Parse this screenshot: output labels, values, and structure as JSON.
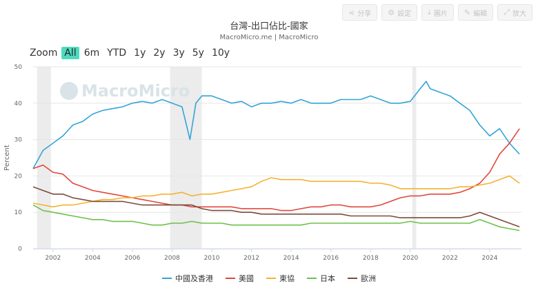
{
  "toolbar": [
    {
      "icon": "share-icon",
      "glyph": "⋖",
      "label": "分享"
    },
    {
      "icon": "gear-icon",
      "glyph": "⚙",
      "label": "設定"
    },
    {
      "icon": "download-icon",
      "glyph": "⤓",
      "label": "圖片"
    },
    {
      "icon": "pencil-icon",
      "glyph": "✎",
      "label": "編輯"
    },
    {
      "icon": "expand-icon",
      "glyph": "⤢",
      "label": "放大"
    }
  ],
  "zoom": {
    "label": "Zoom",
    "options": [
      "All",
      "6m",
      "YTD",
      "1y",
      "2y",
      "3y",
      "5y",
      "10y"
    ],
    "active": "All"
  },
  "watermark": "MacroMicro",
  "chart_data": {
    "type": "line",
    "title": "台灣-出口佔比-國家",
    "subtitle": "MacroMicro.me | MacroMicro",
    "ylabel": "Percent",
    "ylim": [
      0,
      50
    ],
    "yticks": [
      0,
      10,
      20,
      30,
      40,
      50
    ],
    "xlim": [
      2001.0,
      2025.6
    ],
    "xticks": [
      "2002",
      "2004",
      "2006",
      "2008",
      "2010",
      "2012",
      "2014",
      "2016",
      "2018",
      "2020",
      "2022",
      "2024"
    ],
    "grid": true,
    "legend_position": "bottom",
    "recession_bands": [
      [
        2001.2,
        2001.9
      ],
      [
        2007.9,
        2009.5
      ],
      [
        2020.1,
        2020.3
      ]
    ],
    "series": [
      {
        "name": "中國及香港",
        "color": "#31a4d8",
        "x": [
          2001.0,
          2001.5,
          2002.0,
          2002.5,
          2003.0,
          2003.5,
          2004.0,
          2004.5,
          2005.0,
          2005.5,
          2006.0,
          2006.5,
          2007.0,
          2007.5,
          2008.0,
          2008.5,
          2008.9,
          2009.2,
          2009.5,
          2010.0,
          2010.5,
          2011.0,
          2011.5,
          2012.0,
          2012.5,
          2013.0,
          2013.5,
          2014.0,
          2014.5,
          2015.0,
          2015.5,
          2016.0,
          2016.5,
          2017.0,
          2017.5,
          2018.0,
          2018.5,
          2019.0,
          2019.5,
          2020.0,
          2020.5,
          2020.8,
          2021.0,
          2021.5,
          2022.0,
          2022.5,
          2023.0,
          2023.5,
          2024.0,
          2024.5,
          2025.0,
          2025.5
        ],
        "values": [
          22,
          27,
          29,
          31,
          34,
          35,
          37,
          38,
          38.5,
          39,
          40,
          40.5,
          40,
          41,
          40,
          39,
          30,
          40,
          42,
          42,
          41,
          40,
          40.5,
          39,
          40,
          40,
          40.5,
          40,
          41,
          40,
          40,
          40,
          41,
          41,
          41,
          42,
          41,
          40,
          40,
          40.5,
          44,
          46,
          44,
          43,
          42,
          40,
          38,
          34,
          31,
          33,
          29,
          26
        ]
      },
      {
        "name": "美國",
        "color": "#e0473c",
        "x": [
          2001.0,
          2001.5,
          2002.0,
          2002.5,
          2003.0,
          2003.5,
          2004.0,
          2004.5,
          2005.0,
          2005.5,
          2006.0,
          2006.5,
          2007.0,
          2007.5,
          2008.0,
          2008.5,
          2009.0,
          2009.5,
          2010.0,
          2010.5,
          2011.0,
          2011.5,
          2012.0,
          2012.5,
          2013.0,
          2013.5,
          2014.0,
          2014.5,
          2015.0,
          2015.5,
          2016.0,
          2016.5,
          2017.0,
          2017.5,
          2018.0,
          2018.5,
          2019.0,
          2019.5,
          2020.0,
          2020.5,
          2021.0,
          2021.5,
          2022.0,
          2022.5,
          2023.0,
          2023.5,
          2024.0,
          2024.5,
          2025.0,
          2025.5
        ],
        "values": [
          22,
          23,
          21,
          20.5,
          18,
          17,
          16,
          15.5,
          15,
          14.5,
          14,
          13.5,
          13,
          12.5,
          12,
          12,
          11.5,
          11.5,
          11.5,
          11.5,
          11.5,
          11,
          11,
          11,
          11,
          10.5,
          10.5,
          11,
          11.5,
          11.5,
          12,
          12,
          11.5,
          11.5,
          11.5,
          12,
          13,
          14,
          14.5,
          14.5,
          15,
          15,
          15,
          15.5,
          16.5,
          18,
          21,
          26,
          29,
          33
        ]
      },
      {
        "name": "東協",
        "color": "#f5b12f",
        "x": [
          2001.0,
          2001.5,
          2002.0,
          2002.5,
          2003.0,
          2003.5,
          2004.0,
          2004.5,
          2005.0,
          2005.5,
          2006.0,
          2006.5,
          2007.0,
          2007.5,
          2008.0,
          2008.5,
          2009.0,
          2009.5,
          2010.0,
          2010.5,
          2011.0,
          2011.5,
          2012.0,
          2012.5,
          2013.0,
          2013.5,
          2014.0,
          2014.5,
          2015.0,
          2015.5,
          2016.0,
          2016.5,
          2017.0,
          2017.5,
          2018.0,
          2018.5,
          2019.0,
          2019.5,
          2020.0,
          2020.5,
          2021.0,
          2021.5,
          2022.0,
          2022.5,
          2023.0,
          2023.5,
          2024.0,
          2024.5,
          2025.0,
          2025.5
        ],
        "values": [
          12.5,
          12,
          11.5,
          12,
          12,
          12.5,
          13,
          13.5,
          13.5,
          14,
          14,
          14.5,
          14.5,
          15,
          15,
          15.5,
          14.5,
          15,
          15,
          15.5,
          16,
          16.5,
          17,
          18.5,
          19.5,
          19,
          19,
          19,
          18.5,
          18.5,
          18.5,
          18.5,
          18.5,
          18.5,
          18,
          18,
          17.5,
          16.5,
          16.5,
          16.5,
          16.5,
          16.5,
          16.5,
          17,
          17,
          17.5,
          18,
          19,
          20,
          18
        ]
      },
      {
        "name": "日本",
        "color": "#69c14a",
        "x": [
          2001.0,
          2001.5,
          2002.0,
          2002.5,
          2003.0,
          2003.5,
          2004.0,
          2004.5,
          2005.0,
          2005.5,
          2006.0,
          2006.5,
          2007.0,
          2007.5,
          2008.0,
          2008.5,
          2009.0,
          2009.5,
          2010.0,
          2010.5,
          2011.0,
          2011.5,
          2012.0,
          2012.5,
          2013.0,
          2013.5,
          2014.0,
          2014.5,
          2015.0,
          2015.5,
          2016.0,
          2016.5,
          2017.0,
          2017.5,
          2018.0,
          2018.5,
          2019.0,
          2019.5,
          2020.0,
          2020.5,
          2021.0,
          2021.5,
          2022.0,
          2022.5,
          2023.0,
          2023.5,
          2024.0,
          2024.5,
          2025.0,
          2025.5
        ],
        "values": [
          12,
          10.5,
          10,
          9.5,
          9,
          8.5,
          8,
          8,
          7.5,
          7.5,
          7.5,
          7,
          6.5,
          6.5,
          7,
          7,
          7.5,
          7,
          7,
          7,
          6.5,
          6.5,
          6.5,
          6.5,
          6.5,
          6.5,
          6.5,
          6.5,
          7,
          7,
          7,
          7,
          7,
          7,
          7,
          7,
          7,
          7,
          7.5,
          7,
          7,
          7,
          7,
          7,
          7,
          8,
          7,
          6,
          5.5,
          5
        ]
      },
      {
        "name": "歐洲",
        "color": "#7b4a3a",
        "x": [
          2001.0,
          2001.5,
          2002.0,
          2002.5,
          2003.0,
          2003.5,
          2004.0,
          2004.5,
          2005.0,
          2005.5,
          2006.0,
          2006.5,
          2007.0,
          2007.5,
          2008.0,
          2008.5,
          2009.0,
          2009.5,
          2010.0,
          2010.5,
          2011.0,
          2011.5,
          2012.0,
          2012.5,
          2013.0,
          2013.5,
          2014.0,
          2014.5,
          2015.0,
          2015.5,
          2016.0,
          2016.5,
          2017.0,
          2017.5,
          2018.0,
          2018.5,
          2019.0,
          2019.5,
          2020.0,
          2020.5,
          2021.0,
          2021.5,
          2022.0,
          2022.5,
          2023.0,
          2023.5,
          2024.0,
          2024.5,
          2025.0,
          2025.5
        ],
        "values": [
          17,
          16,
          15,
          15,
          14,
          13.5,
          13,
          13,
          13,
          13,
          12.5,
          12,
          12,
          12,
          12,
          12,
          12,
          11,
          10.5,
          10.5,
          10.5,
          10,
          10,
          9.5,
          9.5,
          9.5,
          9.5,
          9.5,
          9.5,
          9.5,
          9.5,
          9.5,
          9,
          9,
          9,
          9,
          9,
          8.5,
          8.5,
          8.5,
          8.5,
          8.5,
          8.5,
          8.5,
          9,
          10,
          9,
          8,
          7,
          6
        ]
      }
    ]
  }
}
